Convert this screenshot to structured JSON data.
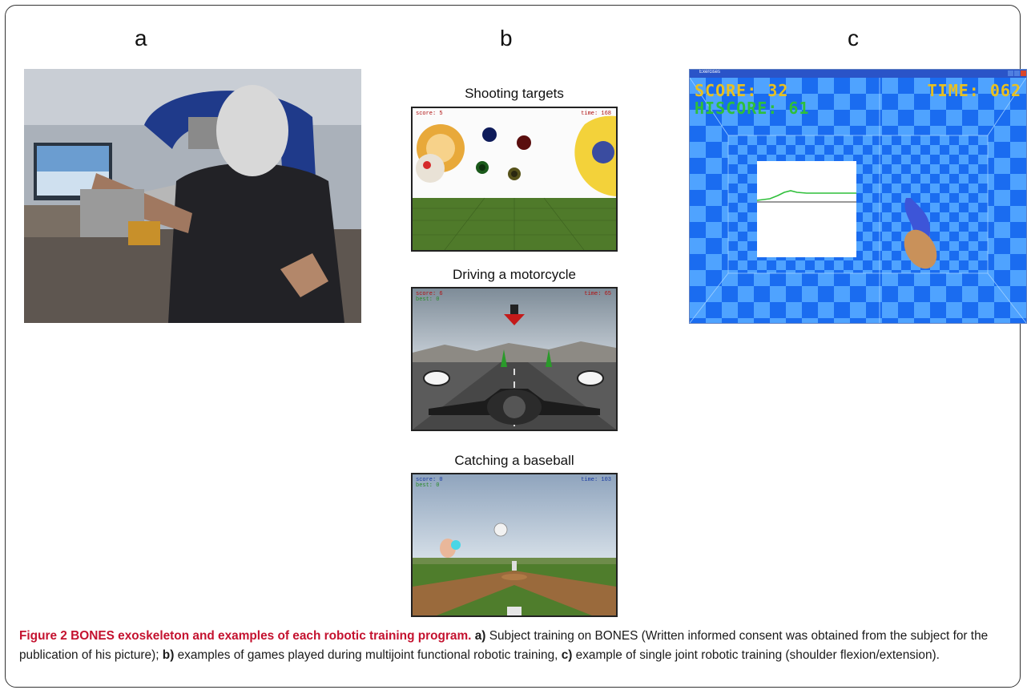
{
  "panels": {
    "a": "a",
    "b": "b",
    "c": "c"
  },
  "games": {
    "shooting_title": "Shooting targets",
    "driving_title": "Driving a motorcycle",
    "baseball_title": "Catching a baseball",
    "shooting_hud": {
      "score": "score: 5",
      "time": "time: 168"
    },
    "driving_hud": {
      "score": "score: 6",
      "best": "best: 0",
      "time": "time: 65"
    },
    "baseball_hud": {
      "score": "score: 0",
      "best": "best: 0",
      "time": "time: 103"
    }
  },
  "exercise_window": {
    "title": "Exercises",
    "score": "SCORE: 32",
    "hiscore": "HISCORE: 61",
    "time": "TIME: 062"
  },
  "caption": {
    "figure_label": "Figure 2 BONES exoskeleton and examples of each robotic training program.",
    "a_label": "a)",
    "a_text": " Subject training on BONES (Written informed consent was obtained from the subject for the publication of his picture); ",
    "b_label": "b)",
    "b_text": " examples of games played during multijoint functional robotic training, ",
    "c_label": "c)",
    "c_text": " example of single joint robotic training (shoulder flexion/extension)."
  },
  "colors": {
    "caption_accent": "#c4122f",
    "checker_blue": "#1a6cf0",
    "checker_light": "#4fa3ff",
    "hud_yellow": "#e8c020",
    "hud_green": "#2fbf3a"
  }
}
